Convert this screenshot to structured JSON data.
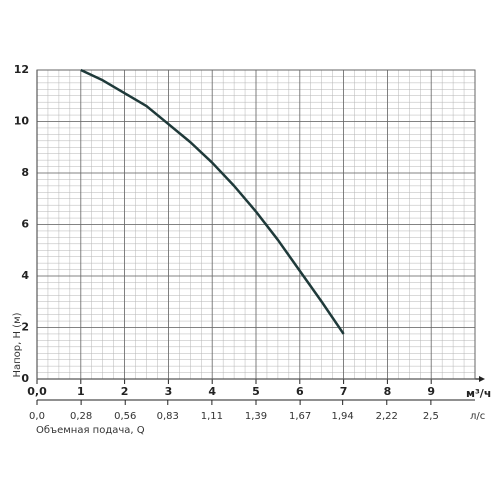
{
  "chart_data": {
    "type": "line",
    "y_label": "Напор, H (м)",
    "x_label": "Объемная подача, Q",
    "x_unit": "м³/ч",
    "x2_unit": "л/с",
    "x": [
      1,
      1.5,
      2,
      2.5,
      3,
      3.5,
      4,
      4.5,
      5,
      5.5,
      6,
      6.5,
      7
    ],
    "series": [
      {
        "color": "#1f3a3a",
        "values": [
          12,
          11.6,
          11.1,
          10.6,
          9.9,
          9.2,
          8.4,
          7.5,
          6.5,
          5.4,
          4.2,
          3.0,
          1.75
        ]
      }
    ],
    "xlim": [
      0,
      10
    ],
    "xticks": [
      {
        "value": 0,
        "label": "0,0"
      },
      1,
      2,
      3,
      4,
      5,
      6,
      7,
      8,
      9
    ],
    "x2lim": [
      0,
      2.78
    ],
    "x2ticks": [
      {
        "value": 0,
        "label": "0,0"
      },
      {
        "value": 0.28,
        "label": "0,28"
      },
      {
        "value": 0.56,
        "label": "0,56"
      },
      {
        "value": 0.83,
        "label": "0,83"
      },
      {
        "value": 1.11,
        "label": "1,11"
      },
      {
        "value": 1.39,
        "label": "1,39"
      },
      {
        "value": 1.67,
        "label": "1,67"
      },
      {
        "value": 1.94,
        "label": "1,94"
      },
      {
        "value": 2.22,
        "label": "2,22"
      },
      {
        "value": 2.5,
        "label": "2,5"
      }
    ],
    "ylim": [
      0,
      12
    ],
    "yticks": [
      0,
      2,
      4,
      6,
      8,
      10,
      12
    ],
    "grid": true
  }
}
